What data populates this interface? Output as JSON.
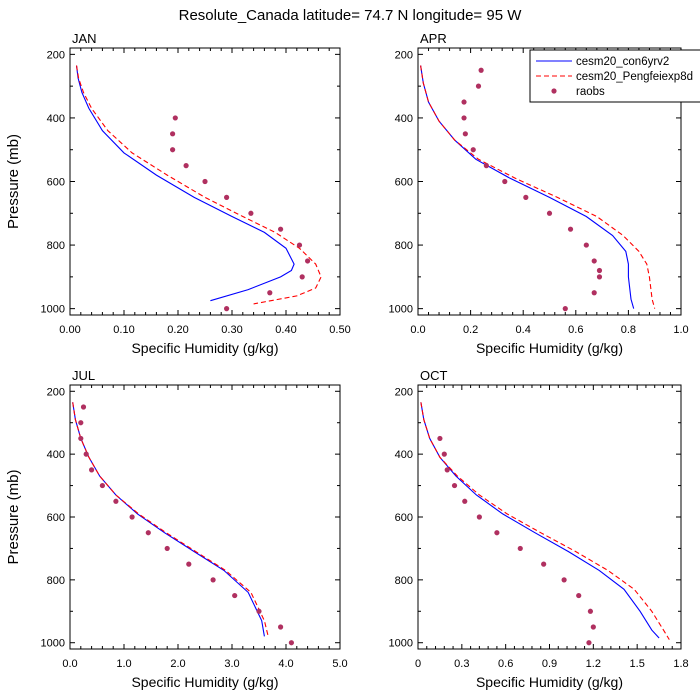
{
  "title": "Resolute_Canada  latitude= 74.7 N longitude= 95 W",
  "colors": {
    "model1": "#0000ff",
    "model2": "#ff0000",
    "obs": "#b03060",
    "axis": "#000000"
  },
  "legend": {
    "placement": "top-right",
    "items": [
      {
        "label": "cesm20_con6yrv2",
        "style": "solid-line",
        "color": "#0000ff"
      },
      {
        "label": "cesm20_Pengfeiexp8d",
        "style": "dashed-line",
        "color": "#ff0000"
      },
      {
        "label": "raobs",
        "style": "marker",
        "color": "#b03060"
      }
    ]
  },
  "chart_data": [
    {
      "type": "line",
      "panel": "JAN",
      "xlabel": "Specific Humidity (g/kg)",
      "ylabel": "Pressure (mb)",
      "xlim": [
        0,
        0.5
      ],
      "ylim": [
        1020,
        180
      ],
      "xticks": [
        0,
        0.1,
        0.2,
        0.3,
        0.4,
        0.5
      ],
      "xtick_labels": [
        "0.00",
        "0.10",
        "0.20",
        "0.30",
        "0.40",
        "0.50"
      ],
      "yticks": [
        200,
        400,
        600,
        800,
        1000
      ],
      "series": [
        {
          "name": "cesm20_con6yrv2",
          "x": [
            0.012,
            0.015,
            0.022,
            0.035,
            0.06,
            0.1,
            0.16,
            0.23,
            0.3,
            0.36,
            0.4,
            0.415,
            0.41,
            0.39,
            0.33,
            0.26
          ],
          "y": [
            235,
            275,
            320,
            370,
            440,
            510,
            580,
            650,
            710,
            760,
            810,
            860,
            880,
            900,
            940,
            975
          ]
        },
        {
          "name": "cesm20_Pengfeiexp8d",
          "x": [
            0.012,
            0.016,
            0.025,
            0.04,
            0.07,
            0.115,
            0.18,
            0.25,
            0.32,
            0.38,
            0.425,
            0.455,
            0.465,
            0.455,
            0.42,
            0.34
          ],
          "y": [
            235,
            275,
            320,
            370,
            440,
            510,
            580,
            650,
            710,
            760,
            810,
            860,
            900,
            935,
            960,
            985
          ]
        },
        {
          "name": "raobs",
          "x": [
            0.195,
            0.19,
            0.19,
            0.215,
            0.25,
            0.29,
            0.335,
            0.39,
            0.425,
            0.44,
            0.43,
            0.37,
            0.29
          ],
          "y": [
            400,
            450,
            500,
            550,
            600,
            650,
            700,
            750,
            800,
            850,
            900,
            950,
            1000
          ]
        }
      ]
    },
    {
      "type": "line",
      "panel": "APR",
      "xlabel": "Specific Humidity (g/kg)",
      "ylabel": "Pressure (mb)",
      "xlim": [
        0,
        1.0
      ],
      "ylim": [
        1020,
        180
      ],
      "xticks": [
        0,
        0.2,
        0.4,
        0.6,
        0.8,
        1.0
      ],
      "xtick_labels": [
        "0.0",
        "0.2",
        "0.4",
        "0.6",
        "0.8",
        "1.0"
      ],
      "yticks": [
        200,
        400,
        600,
        800,
        1000
      ],
      "series": [
        {
          "name": "cesm20_con6yrv2",
          "x": [
            0.01,
            0.02,
            0.04,
            0.08,
            0.14,
            0.22,
            0.35,
            0.5,
            0.64,
            0.74,
            0.79,
            0.8,
            0.8,
            0.81,
            0.82
          ],
          "y": [
            235,
            290,
            350,
            410,
            470,
            530,
            590,
            650,
            710,
            770,
            820,
            860,
            900,
            970,
            1000
          ]
        },
        {
          "name": "cesm20_Pengfeiexp8d",
          "x": [
            0.01,
            0.02,
            0.04,
            0.08,
            0.14,
            0.23,
            0.37,
            0.53,
            0.68,
            0.78,
            0.84,
            0.87,
            0.88,
            0.89,
            0.9
          ],
          "y": [
            235,
            290,
            350,
            410,
            470,
            530,
            590,
            650,
            710,
            770,
            820,
            860,
            900,
            970,
            1000
          ]
        },
        {
          "name": "raobs",
          "x": [
            0.24,
            0.23,
            0.175,
            0.175,
            0.18,
            0.21,
            0.26,
            0.33,
            0.41,
            0.5,
            0.58,
            0.64,
            0.67,
            0.69,
            0.69,
            0.67,
            0.56
          ],
          "y": [
            250,
            300,
            350,
            400,
            450,
            500,
            550,
            600,
            650,
            700,
            750,
            800,
            850,
            880,
            900,
            950,
            1000
          ]
        }
      ]
    },
    {
      "type": "line",
      "panel": "JUL",
      "xlabel": "Specific Humidity (g/kg)",
      "ylabel": "Pressure (mb)",
      "xlim": [
        0,
        5.0
      ],
      "ylim": [
        1020,
        180
      ],
      "xticks": [
        0,
        1,
        2,
        3,
        4,
        5
      ],
      "xtick_labels": [
        "0.0",
        "1.0",
        "2.0",
        "3.0",
        "4.0",
        "5.0"
      ],
      "yticks": [
        200,
        400,
        600,
        800,
        1000
      ],
      "series": [
        {
          "name": "cesm20_con6yrv2",
          "x": [
            0.05,
            0.1,
            0.2,
            0.35,
            0.55,
            0.85,
            1.25,
            1.75,
            2.3,
            2.85,
            3.3,
            3.55,
            3.6
          ],
          "y": [
            235,
            290,
            350,
            410,
            470,
            530,
            590,
            650,
            710,
            770,
            840,
            930,
            980
          ]
        },
        {
          "name": "cesm20_Pengfeiexp8d",
          "x": [
            0.05,
            0.1,
            0.2,
            0.35,
            0.55,
            0.85,
            1.27,
            1.78,
            2.33,
            2.88,
            3.35,
            3.6,
            3.67
          ],
          "y": [
            235,
            290,
            350,
            410,
            470,
            530,
            590,
            650,
            710,
            770,
            840,
            930,
            980
          ]
        },
        {
          "name": "raobs",
          "x": [
            0.25,
            0.2,
            0.2,
            0.3,
            0.4,
            0.6,
            0.85,
            1.15,
            1.45,
            1.8,
            2.2,
            2.65,
            3.05,
            3.5,
            3.9,
            4.1
          ],
          "y": [
            250,
            300,
            350,
            400,
            450,
            500,
            550,
            600,
            650,
            700,
            750,
            800,
            850,
            900,
            950,
            1000
          ]
        }
      ]
    },
    {
      "type": "line",
      "panel": "OCT",
      "xlabel": "Specific Humidity (g/kg)",
      "ylabel": "Pressure (mb)",
      "xlim": [
        0,
        1.8
      ],
      "ylim": [
        1020,
        180
      ],
      "xticks": [
        0,
        0.3,
        0.6,
        0.9,
        1.2,
        1.5,
        1.8
      ],
      "xtick_labels": [
        "0",
        "0.3",
        "0.6",
        "0.9",
        "1.2",
        "1.5",
        "1.8"
      ],
      "yticks": [
        200,
        400,
        600,
        800,
        1000
      ],
      "series": [
        {
          "name": "cesm20_con6yrv2",
          "x": [
            0.02,
            0.04,
            0.08,
            0.15,
            0.26,
            0.4,
            0.58,
            0.8,
            1.03,
            1.24,
            1.41,
            1.52,
            1.6,
            1.65
          ],
          "y": [
            235,
            290,
            350,
            410,
            470,
            530,
            590,
            650,
            710,
            770,
            830,
            900,
            960,
            985
          ]
        },
        {
          "name": "cesm20_Pengfeiexp8d",
          "x": [
            0.02,
            0.04,
            0.08,
            0.15,
            0.27,
            0.42,
            0.61,
            0.84,
            1.08,
            1.3,
            1.48,
            1.6,
            1.68,
            1.72
          ],
          "y": [
            235,
            290,
            350,
            410,
            470,
            530,
            590,
            650,
            710,
            770,
            830,
            900,
            960,
            990
          ]
        },
        {
          "name": "raobs",
          "x": [
            0.15,
            0.18,
            0.2,
            0.25,
            0.32,
            0.42,
            0.54,
            0.7,
            0.86,
            1.0,
            1.1,
            1.18,
            1.2,
            1.17
          ],
          "y": [
            350,
            400,
            450,
            500,
            550,
            600,
            650,
            700,
            750,
            800,
            850,
            900,
            950,
            1000
          ]
        }
      ]
    }
  ]
}
